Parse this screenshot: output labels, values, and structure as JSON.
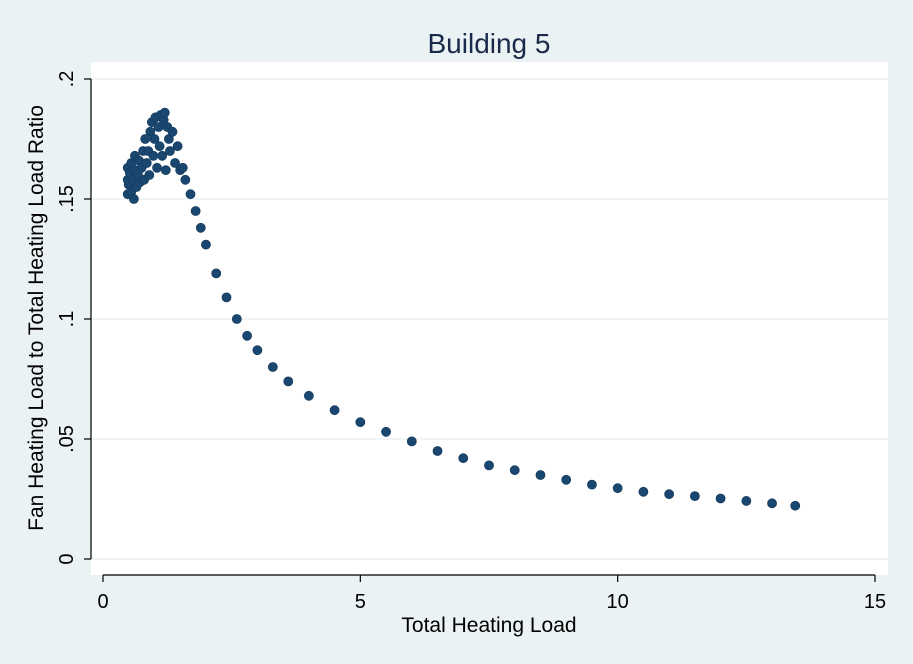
{
  "chart_data": {
    "type": "scatter",
    "title": "Building 5",
    "xlabel": "Total Heating Load",
    "ylabel": "Fan Heating Load to Total Heating Load Ratio",
    "xlim": [
      0,
      15
    ],
    "ylim": [
      0,
      0.2
    ],
    "xticks": [
      "0",
      "5",
      "10",
      "15"
    ],
    "yticks": [
      "0",
      ".05",
      ".1",
      ".15",
      ".2"
    ],
    "grid": true,
    "legend": "none",
    "marker_color": "#1a476f",
    "series": [
      {
        "points": [
          [
            0.48,
            0.152
          ],
          [
            0.48,
            0.158
          ],
          [
            0.48,
            0.163
          ],
          [
            0.5,
            0.156
          ],
          [
            0.52,
            0.161
          ],
          [
            0.55,
            0.153
          ],
          [
            0.55,
            0.165
          ],
          [
            0.58,
            0.158
          ],
          [
            0.6,
            0.15
          ],
          [
            0.62,
            0.162
          ],
          [
            0.62,
            0.168
          ],
          [
            0.65,
            0.155
          ],
          [
            0.68,
            0.16
          ],
          [
            0.7,
            0.166
          ],
          [
            0.72,
            0.157
          ],
          [
            0.75,
            0.163
          ],
          [
            0.78,
            0.17
          ],
          [
            0.8,
            0.158
          ],
          [
            0.82,
            0.175
          ],
          [
            0.85,
            0.165
          ],
          [
            0.88,
            0.17
          ],
          [
            0.9,
            0.16
          ],
          [
            0.92,
            0.178
          ],
          [
            0.95,
            0.182
          ],
          [
            0.98,
            0.168
          ],
          [
            1.0,
            0.175
          ],
          [
            1.02,
            0.184
          ],
          [
            1.05,
            0.163
          ],
          [
            1.08,
            0.18
          ],
          [
            1.1,
            0.172
          ],
          [
            1.12,
            0.185
          ],
          [
            1.15,
            0.168
          ],
          [
            1.18,
            0.183
          ],
          [
            1.2,
            0.186
          ],
          [
            1.22,
            0.162
          ],
          [
            1.25,
            0.18
          ],
          [
            1.28,
            0.175
          ],
          [
            1.3,
            0.17
          ],
          [
            1.35,
            0.178
          ],
          [
            1.4,
            0.165
          ],
          [
            1.45,
            0.172
          ],
          [
            1.5,
            0.162
          ],
          [
            1.55,
            0.163
          ],
          [
            1.6,
            0.158
          ],
          [
            1.7,
            0.152
          ],
          [
            1.8,
            0.145
          ],
          [
            1.9,
            0.138
          ],
          [
            2.0,
            0.131
          ],
          [
            2.2,
            0.119
          ],
          [
            2.4,
            0.109
          ],
          [
            2.6,
            0.1
          ],
          [
            2.8,
            0.093
          ],
          [
            3.0,
            0.087
          ],
          [
            3.3,
            0.08
          ],
          [
            3.6,
            0.074
          ],
          [
            4.0,
            0.068
          ],
          [
            4.5,
            0.062
          ],
          [
            5.0,
            0.057
          ],
          [
            5.5,
            0.053
          ],
          [
            6.0,
            0.049
          ],
          [
            6.5,
            0.045
          ],
          [
            7.0,
            0.042
          ],
          [
            7.5,
            0.039
          ],
          [
            8.0,
            0.037
          ],
          [
            8.5,
            0.035
          ],
          [
            9.0,
            0.033
          ],
          [
            9.5,
            0.031
          ],
          [
            10.0,
            0.0295
          ],
          [
            10.5,
            0.028
          ],
          [
            11.0,
            0.027
          ],
          [
            11.5,
            0.0262
          ],
          [
            12.0,
            0.0252
          ],
          [
            12.5,
            0.0242
          ],
          [
            13.0,
            0.0232
          ],
          [
            13.45,
            0.0222
          ]
        ]
      }
    ]
  }
}
